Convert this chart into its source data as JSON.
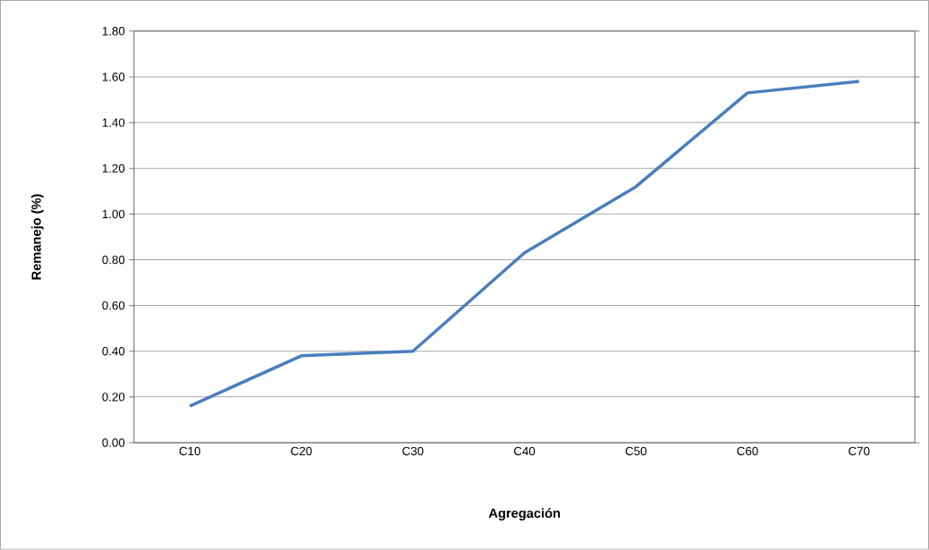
{
  "chart_data": {
    "type": "line",
    "xlabel": "Agregación",
    "ylabel": "Remanejo (%)",
    "categories": [
      "C10",
      "C20",
      "C30",
      "C40",
      "C50",
      "C60",
      "C70"
    ],
    "values": [
      0.16,
      0.38,
      0.4,
      0.83,
      1.12,
      1.53,
      1.58
    ],
    "color": "#4a7ebb",
    "marker": "none",
    "line_style": "solid",
    "grid": "y",
    "legend": false,
    "ylim": [
      0,
      1.8
    ],
    "yticks": [
      {
        "value": 0,
        "label": "0.00"
      },
      {
        "value": 0.2,
        "label": "0.20"
      },
      {
        "value": 0.4,
        "label": "0.40"
      },
      {
        "value": 0.6,
        "label": "0.60"
      },
      {
        "value": 0.8,
        "label": "0.80"
      },
      {
        "value": 1.0,
        "label": "1.00"
      },
      {
        "value": 1.2,
        "label": "1.20"
      },
      {
        "value": 1.4,
        "label": "1.40"
      },
      {
        "value": 1.6,
        "label": "1.60"
      },
      {
        "value": 1.8,
        "label": "1.80"
      }
    ]
  }
}
